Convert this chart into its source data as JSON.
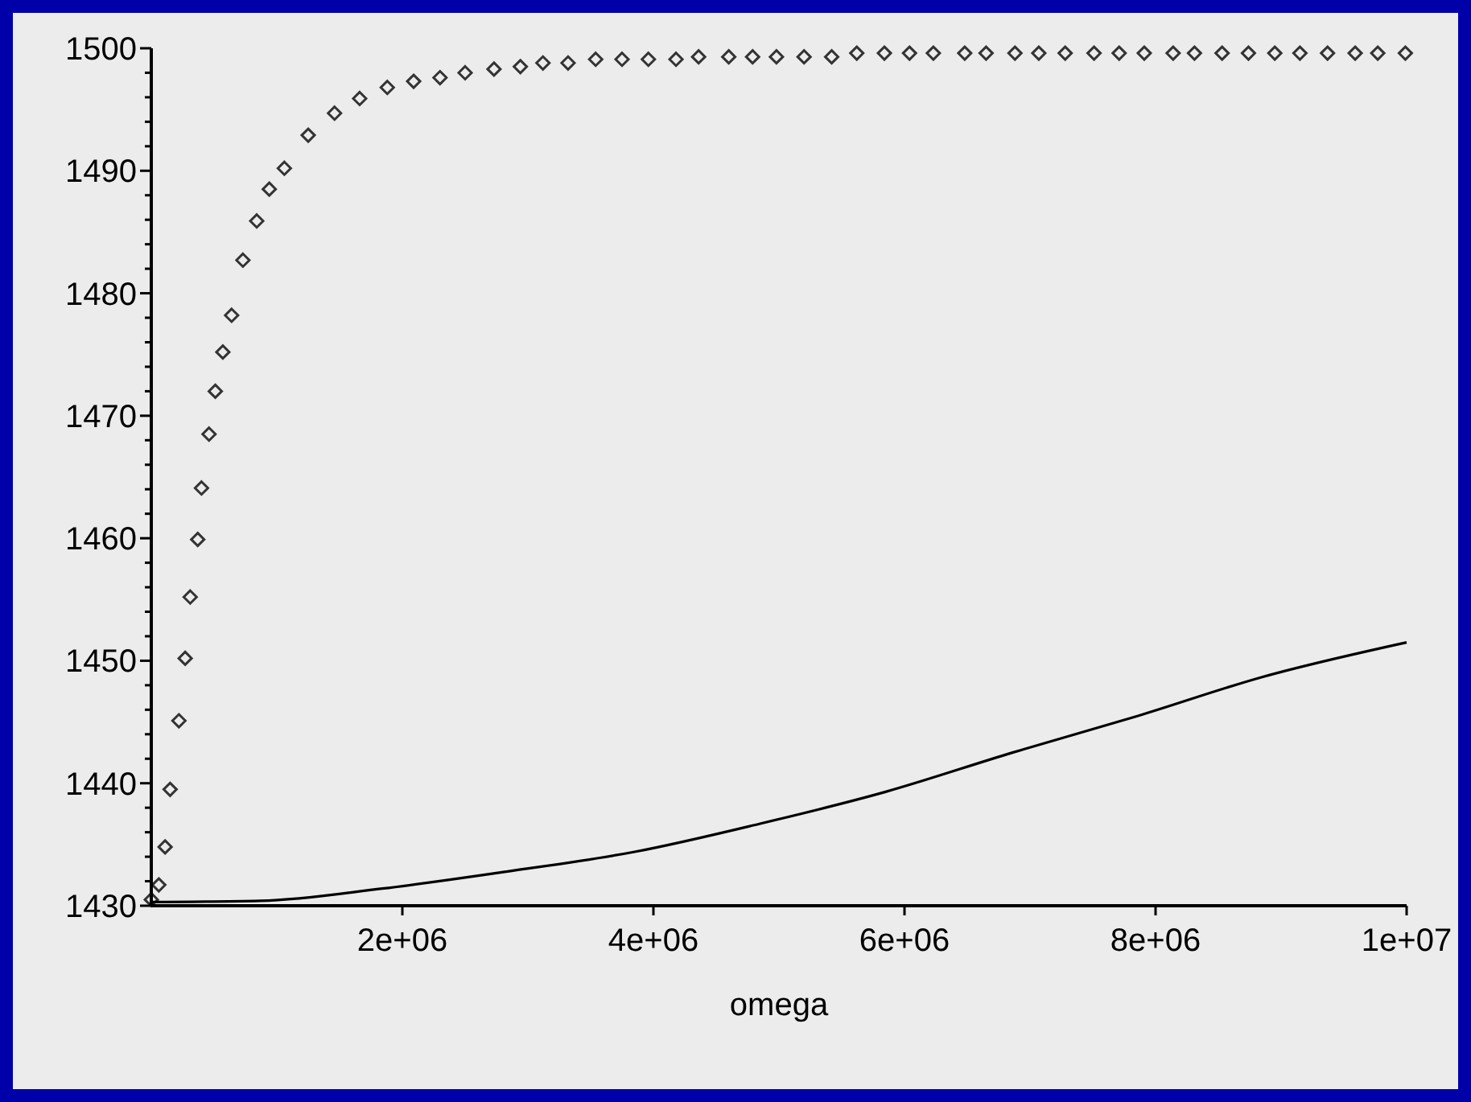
{
  "chart_data": {
    "type": "scatter",
    "xlabel": "omega",
    "xlim": [
      0,
      10000000
    ],
    "ylim": [
      1430,
      1500
    ],
    "xticks": [
      {
        "value": 2000000,
        "label": "2e+06"
      },
      {
        "value": 4000000,
        "label": "4e+06"
      },
      {
        "value": 6000000,
        "label": "6e+06"
      },
      {
        "value": 8000000,
        "label": "8e+06"
      },
      {
        "value": 10000000,
        "label": "1e+07"
      }
    ],
    "yticks": [
      1430,
      {
        "value": 1432,
        "label": null
      },
      {
        "value": 1434,
        "label": null
      },
      {
        "value": 1436,
        "label": null
      },
      {
        "value": 1438,
        "label": null
      },
      1440,
      {
        "value": 1442,
        "label": null
      },
      {
        "value": 1444,
        "label": null
      },
      {
        "value": 1446,
        "label": null
      },
      {
        "value": 1448,
        "label": null
      },
      1450,
      {
        "value": 1452,
        "label": null
      },
      {
        "value": 1454,
        "label": null
      },
      {
        "value": 1456,
        "label": null
      },
      {
        "value": 1458,
        "label": null
      },
      1460,
      {
        "value": 1462,
        "label": null
      },
      {
        "value": 1464,
        "label": null
      },
      {
        "value": 1466,
        "label": null
      },
      {
        "value": 1468,
        "label": null
      },
      1470,
      {
        "value": 1472,
        "label": null
      },
      {
        "value": 1474,
        "label": null
      },
      {
        "value": 1476,
        "label": null
      },
      {
        "value": 1478,
        "label": null
      },
      1480,
      {
        "value": 1482,
        "label": null
      },
      {
        "value": 1484,
        "label": null
      },
      {
        "value": 1486,
        "label": null
      },
      {
        "value": 1488,
        "label": null
      },
      1490,
      {
        "value": 1492,
        "label": null
      },
      {
        "value": 1494,
        "label": null
      },
      {
        "value": 1496,
        "label": null
      },
      {
        "value": 1498,
        "label": null
      },
      1500
    ],
    "grid": false,
    "series": [
      {
        "marker": "diamond",
        "color": "#333333",
        "x": [
          0,
          60000,
          110000,
          150000,
          220000,
          270000,
          310000,
          370000,
          400000,
          460000,
          510000,
          570000,
          640000,
          730000,
          840000,
          940000,
          1060000,
          1250000,
          1460000,
          1660000,
          1880000,
          2090000,
          2300000,
          2500000,
          2730000,
          2940000,
          3120000,
          3320000,
          3540000,
          3750000,
          3960000,
          4180000,
          4360000,
          4600000,
          4790000,
          4980000,
          5200000,
          5420000,
          5620000,
          5840000,
          6040000,
          6230000,
          6480000,
          6650000,
          6880000,
          7070000,
          7280000,
          7510000,
          7710000,
          7910000,
          8140000,
          8310000,
          8530000,
          8740000,
          8950000,
          9150000,
          9370000,
          9590000,
          9770000,
          9990000
        ],
        "values": [
          1430.5,
          1431.7,
          1434.8,
          1439.5,
          1445.1,
          1450.2,
          1455.2,
          1459.9,
          1464.1,
          1468.5,
          1472.0,
          1475.2,
          1478.2,
          1482.7,
          1485.9,
          1488.5,
          1490.2,
          1492.9,
          1494.7,
          1495.9,
          1496.8,
          1497.3,
          1497.6,
          1498.0,
          1498.3,
          1498.5,
          1498.8,
          1498.8,
          1499.1,
          1499.1,
          1499.1,
          1499.1,
          1499.3,
          1499.3,
          1499.3,
          1499.3,
          1499.3,
          1499.3,
          1499.6,
          1499.6,
          1499.6,
          1499.6,
          1499.6,
          1499.6,
          1499.6,
          1499.6,
          1499.6,
          1499.6,
          1499.6,
          1499.6,
          1499.6,
          1499.6,
          1499.6,
          1499.6,
          1499.6,
          1499.6,
          1499.6,
          1499.6,
          1499.6,
          1499.6
        ]
      },
      {
        "type": "line",
        "marker": "none",
        "line_style": "solid",
        "color": "#000000",
        "x": [
          0,
          870000,
          1840000,
          2840000,
          3850000,
          4850000,
          5850000,
          6860000,
          7860000,
          8860000,
          10000000
        ],
        "values": [
          1430.3,
          1430.4,
          1431.4,
          1432.8,
          1434.4,
          1436.7,
          1439.3,
          1442.5,
          1445.5,
          1448.7,
          1451.5
        ]
      }
    ]
  }
}
